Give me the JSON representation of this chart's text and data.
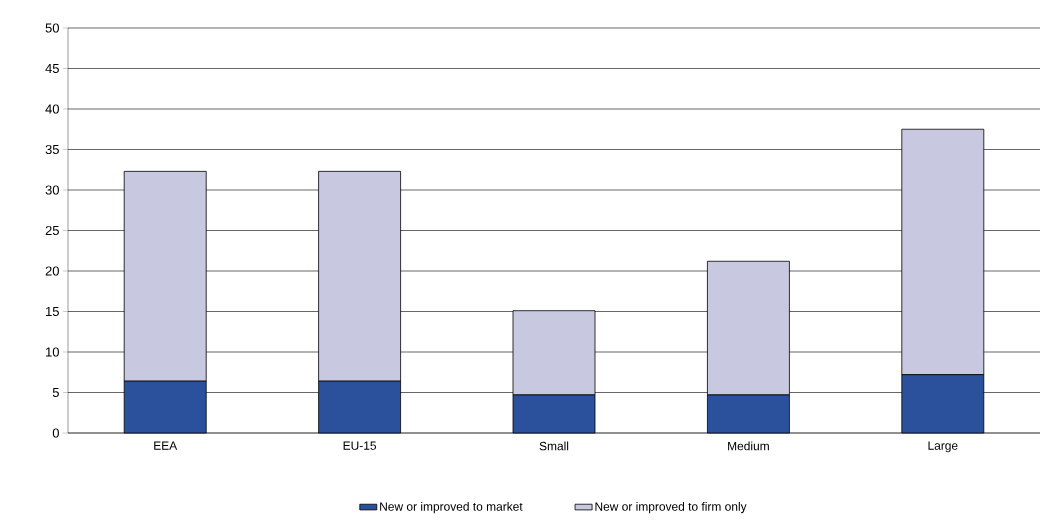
{
  "chart_data": {
    "type": "bar",
    "stacked": true,
    "categories": [
      "EEA",
      "EU-15",
      "Small",
      "Medium",
      "Large"
    ],
    "series": [
      {
        "name": "New or improved to market",
        "color": "#2b509c",
        "values": [
          6.4,
          6.4,
          4.7,
          4.7,
          7.2
        ]
      },
      {
        "name": "New or improved to firm only",
        "color": "#c8c8e0",
        "values": [
          25.9,
          25.9,
          10.4,
          16.5,
          30.3
        ]
      }
    ],
    "ylim": [
      0,
      50
    ],
    "yticks": [
      0,
      5,
      10,
      15,
      20,
      25,
      30,
      35,
      40,
      45,
      50
    ],
    "grid": "y",
    "legend": "bottom"
  }
}
